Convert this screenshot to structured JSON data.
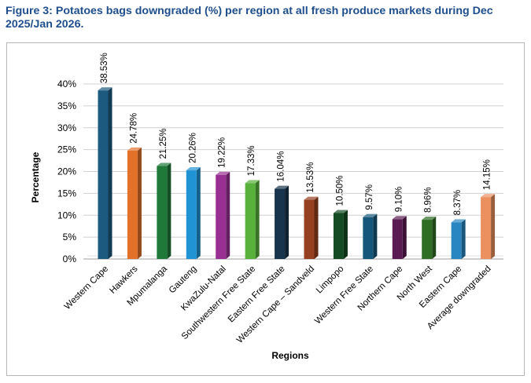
{
  "figure": {
    "title": "Figure 3: Potatoes bags downgraded (%) per region at all fresh produce markets during Dec 2025/Jan 2026."
  },
  "chart_data": {
    "type": "bar",
    "title": "Figure 3: Potatoes bags downgraded (%) per region at all fresh produce markets during Dec 2025/Jan 2026.",
    "xlabel": "Regions",
    "ylabel": "Percentage",
    "ylim": [
      0,
      40
    ],
    "yticks": [
      0,
      5,
      10,
      15,
      20,
      25,
      30,
      35,
      40
    ],
    "ytick_labels": [
      "0%",
      "5%",
      "10%",
      "15%",
      "20%",
      "25%",
      "30%",
      "35%",
      "40%"
    ],
    "grid": true,
    "categories": [
      "Western Cape",
      "Hawkers",
      "Mpumalanga",
      "Gauteng",
      "KwaZulu-Natal",
      "Southwestern Free State",
      "Eastern Free State",
      "Western Cape – Sandveld",
      "Limpopo",
      "Western Free State",
      "Northern Cape",
      "North West",
      "Eastern Cape",
      "Average downgraded"
    ],
    "values": [
      38.53,
      24.78,
      21.25,
      20.26,
      19.22,
      17.33,
      16.04,
      13.53,
      10.5,
      9.57,
      9.1,
      8.96,
      8.37,
      14.15
    ],
    "data_labels": [
      "38.53%",
      "24.78%",
      "21.25%",
      "20.26%",
      "19.22%",
      "17.33%",
      "16.04%",
      "13.53%",
      "10.50%",
      "9.57%",
      "9.10%",
      "8.96%",
      "8.37%",
      "14.15%"
    ],
    "colors": [
      "#1c5a80",
      "#e3712a",
      "#1f7a3a",
      "#1f93d4",
      "#9a2f93",
      "#58b13a",
      "#17344c",
      "#974021",
      "#154b22",
      "#15577a",
      "#5a1b52",
      "#2f6d25",
      "#2a86c0",
      "#ec9060"
    ]
  }
}
